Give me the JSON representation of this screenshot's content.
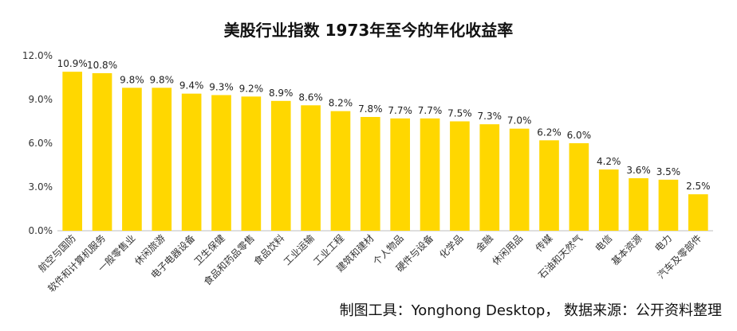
{
  "chart_data": {
    "type": "bar",
    "title": "美股行业指数 1973年至今的年化收益率",
    "xlabel": "",
    "ylabel": "",
    "ylim": [
      0,
      12
    ],
    "yticks": [
      "0.0%",
      "3.0%",
      "6.0%",
      "9.0%",
      "12.0%"
    ],
    "ytick_values": [
      0,
      3,
      6,
      9,
      12
    ],
    "grid": false,
    "legend": "none",
    "bar_color": "#FFD700",
    "categories": [
      "航空与国防",
      "软件和计算机服务",
      "一般零售业",
      "休闲旅游",
      "电子电器设备",
      "卫生保健",
      "食品和药品零售",
      "食品饮料",
      "工业运输",
      "工业工程",
      "建筑和建材",
      "个人物品",
      "硬件与设备",
      "化学品",
      "金融",
      "休闲用品",
      "传媒",
      "石油和天然气",
      "电信",
      "基本资源",
      "电力",
      "汽车及零部件"
    ],
    "values": [
      10.9,
      10.8,
      9.8,
      9.8,
      9.4,
      9.3,
      9.2,
      8.9,
      8.6,
      8.2,
      7.8,
      7.7,
      7.7,
      7.5,
      7.3,
      7.0,
      6.2,
      6.0,
      4.2,
      3.6,
      3.5,
      2.5
    ],
    "value_labels": [
      "10.9%",
      "10.8%",
      "9.8%",
      "9.8%",
      "9.4%",
      "9.3%",
      "9.2%",
      "8.9%",
      "8.6%",
      "8.2%",
      "7.8%",
      "7.7%",
      "7.7%",
      "7.5%",
      "7.3%",
      "7.0%",
      "6.2%",
      "6.0%",
      "4.2%",
      "3.6%",
      "3.5%",
      "2.5%"
    ]
  },
  "footer": "制图工具：Yonghong Desktop， 数据来源：公开资料整理"
}
